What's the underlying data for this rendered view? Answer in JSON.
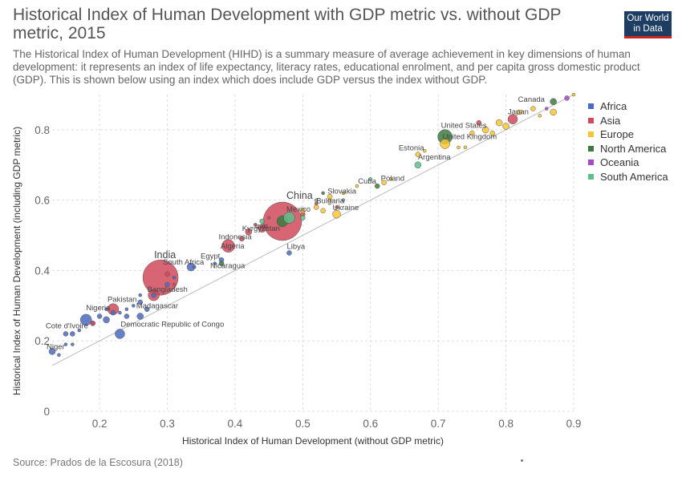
{
  "header": {
    "title": "Historical Index of Human Development with GDP metric vs. without GDP metric, 2015",
    "subtitle": "The Historical Index of Human Development (HIHD) is a summary measure of average achievement in key dimensions of human development: it represents an index of life expectancy, literacy rates, educational enrolment, and per capita gross domestic product (GDP). This is shown below using an index which does include GDP versus the index without GDP.",
    "logo_line1": "Our World",
    "logo_line2": "in Data"
  },
  "footer": {
    "source": "Source: Prados de la Escosura (2018)"
  },
  "colors": {
    "Africa": "#4c6bbf",
    "Asia": "#d04a5b",
    "Europe": "#f8c632",
    "North America": "#3e7a3e",
    "Oceania": "#a948c8",
    "South America": "#5dbf8a"
  },
  "chart_data": {
    "type": "scatter",
    "title": "Historical Index of Human Development with GDP metric vs. without GDP metric, 2015",
    "xlabel": "Historical Index of Human Development (without GDP metric)",
    "ylabel": "Historical Index of Human Development (including GDP metric)",
    "xlim": [
      0.13,
      0.9
    ],
    "ylim": [
      0,
      0.9
    ],
    "xticks": [
      "0.2",
      "0.3",
      "0.4",
      "0.5",
      "0.6",
      "0.7",
      "0.8",
      "0.9"
    ],
    "yticks": [
      "0",
      "0.2",
      "0.4",
      "0.6",
      "0.8"
    ],
    "grid": "dashed",
    "legend": [
      "Africa",
      "Asia",
      "Europe",
      "North America",
      "Oceania",
      "South America"
    ],
    "legend_position": "right",
    "series": [
      {
        "name": "Africa",
        "points": [
          {
            "x": 0.13,
            "y": 0.17,
            "r": 4,
            "label": "Niger"
          },
          {
            "x": 0.15,
            "y": 0.22,
            "r": 3,
            "label": "Cote d'Ivoire"
          },
          {
            "x": 0.18,
            "y": 0.26,
            "r": 7,
            "label": "Nigeria"
          },
          {
            "x": 0.23,
            "y": 0.22,
            "r": 6,
            "label": "Democratic Republic of Congo"
          },
          {
            "x": 0.26,
            "y": 0.27,
            "r": 4,
            "label": "Madagascar"
          },
          {
            "x": 0.335,
            "y": 0.41,
            "r": 5,
            "label": "South Africa"
          },
          {
            "x": 0.38,
            "y": 0.43,
            "r": 3,
            "label": "Egypt"
          },
          {
            "x": 0.48,
            "y": 0.45,
            "r": 3,
            "label": "Libya"
          },
          {
            "x": 0.14,
            "y": 0.16,
            "r": 2
          },
          {
            "x": 0.15,
            "y": 0.19,
            "r": 2
          },
          {
            "x": 0.16,
            "y": 0.19,
            "r": 2
          },
          {
            "x": 0.16,
            "y": 0.22,
            "r": 3
          },
          {
            "x": 0.17,
            "y": 0.23,
            "r": 2
          },
          {
            "x": 0.19,
            "y": 0.25,
            "r": 3
          },
          {
            "x": 0.2,
            "y": 0.27,
            "r": 3
          },
          {
            "x": 0.21,
            "y": 0.26,
            "r": 4
          },
          {
            "x": 0.21,
            "y": 0.29,
            "r": 2
          },
          {
            "x": 0.22,
            "y": 0.28,
            "r": 3
          },
          {
            "x": 0.23,
            "y": 0.28,
            "r": 2
          },
          {
            "x": 0.24,
            "y": 0.27,
            "r": 3
          },
          {
            "x": 0.24,
            "y": 0.29,
            "r": 2
          },
          {
            "x": 0.25,
            "y": 0.3,
            "r": 2
          },
          {
            "x": 0.26,
            "y": 0.31,
            "r": 3
          },
          {
            "x": 0.26,
            "y": 0.33,
            "r": 2
          },
          {
            "x": 0.27,
            "y": 0.29,
            "r": 3
          },
          {
            "x": 0.28,
            "y": 0.33,
            "r": 3
          },
          {
            "x": 0.3,
            "y": 0.36,
            "r": 3
          },
          {
            "x": 0.31,
            "y": 0.38,
            "r": 2
          },
          {
            "x": 0.34,
            "y": 0.41,
            "r": 2
          },
          {
            "x": 0.37,
            "y": 0.42,
            "r": 2
          }
        ]
      },
      {
        "name": "Asia",
        "points": [
          {
            "x": 0.29,
            "y": 0.38,
            "r": 22,
            "label": "India"
          },
          {
            "x": 0.28,
            "y": 0.33,
            "r": 7,
            "label": "Bangladesh"
          },
          {
            "x": 0.22,
            "y": 0.29,
            "r": 7,
            "label": "Pakistan"
          },
          {
            "x": 0.39,
            "y": 0.47,
            "r": 8,
            "label": "Indonesia"
          },
          {
            "x": 0.47,
            "y": 0.54,
            "r": 24,
            "label": "China"
          },
          {
            "x": 0.44,
            "y": 0.52,
            "r": 5,
            "label": "Iran"
          },
          {
            "x": 0.42,
            "y": 0.51,
            "r": 4,
            "label": "Kyrgyzstan"
          },
          {
            "x": 0.81,
            "y": 0.83,
            "r": 6,
            "label": "Japan"
          },
          {
            "x": 0.19,
            "y": 0.25,
            "r": 3
          },
          {
            "x": 0.3,
            "y": 0.39,
            "r": 3
          },
          {
            "x": 0.31,
            "y": 0.36,
            "r": 2
          },
          {
            "x": 0.41,
            "y": 0.49,
            "r": 3
          },
          {
            "x": 0.43,
            "y": 0.53,
            "r": 2
          },
          {
            "x": 0.45,
            "y": 0.55,
            "r": 2
          },
          {
            "x": 0.5,
            "y": 0.56,
            "r": 3
          },
          {
            "x": 0.52,
            "y": 0.59,
            "r": 2
          },
          {
            "x": 0.55,
            "y": 0.58,
            "r": 2
          },
          {
            "x": 0.76,
            "y": 0.82,
            "r": 3
          }
        ]
      },
      {
        "name": "Europe",
        "points": [
          {
            "x": 0.71,
            "y": 0.76,
            "r": 6,
            "label": "United Kingdom"
          },
          {
            "x": 0.55,
            "y": 0.56,
            "r": 5,
            "label": "Ukraine"
          },
          {
            "x": 0.52,
            "y": 0.58,
            "r": 3,
            "label": "Bulgaria"
          },
          {
            "x": 0.54,
            "y": 0.61,
            "r": 3,
            "label": "Slovakia"
          },
          {
            "x": 0.62,
            "y": 0.65,
            "r": 3,
            "label": "Poland"
          },
          {
            "x": 0.67,
            "y": 0.73,
            "r": 3,
            "label": "Estonia"
          },
          {
            "x": 0.5,
            "y": 0.57,
            "r": 3
          },
          {
            "x": 0.53,
            "y": 0.57,
            "r": 3
          },
          {
            "x": 0.54,
            "y": 0.6,
            "r": 2
          },
          {
            "x": 0.56,
            "y": 0.62,
            "r": 2
          },
          {
            "x": 0.58,
            "y": 0.64,
            "r": 2
          },
          {
            "x": 0.63,
            "y": 0.66,
            "r": 2
          },
          {
            "x": 0.68,
            "y": 0.74,
            "r": 2
          },
          {
            "x": 0.73,
            "y": 0.75,
            "r": 2
          },
          {
            "x": 0.74,
            "y": 0.75,
            "r": 2
          },
          {
            "x": 0.75,
            "y": 0.79,
            "r": 3
          },
          {
            "x": 0.77,
            "y": 0.8,
            "r": 4
          },
          {
            "x": 0.78,
            "y": 0.79,
            "r": 3
          },
          {
            "x": 0.79,
            "y": 0.82,
            "r": 4
          },
          {
            "x": 0.8,
            "y": 0.81,
            "r": 4
          },
          {
            "x": 0.82,
            "y": 0.85,
            "r": 3
          },
          {
            "x": 0.84,
            "y": 0.86,
            "r": 3
          },
          {
            "x": 0.85,
            "y": 0.84,
            "r": 2
          },
          {
            "x": 0.87,
            "y": 0.85,
            "r": 4
          },
          {
            "x": 0.9,
            "y": 0.9,
            "r": 2
          }
        ]
      },
      {
        "name": "North America",
        "points": [
          {
            "x": 0.71,
            "y": 0.78,
            "r": 9,
            "label": "United States"
          },
          {
            "x": 0.87,
            "y": 0.88,
            "r": 4,
            "label": "Canada"
          },
          {
            "x": 0.47,
            "y": 0.54,
            "r": 7,
            "label": "Mexico"
          },
          {
            "x": 0.61,
            "y": 0.64,
            "r": 3,
            "label": "Cuba"
          },
          {
            "x": 0.38,
            "y": 0.42,
            "r": 3,
            "label": "Nicaragua"
          },
          {
            "x": 0.53,
            "y": 0.62,
            "r": 2
          }
        ]
      },
      {
        "name": "Oceania",
        "points": [
          {
            "x": 0.89,
            "y": 0.89,
            "r": 3
          },
          {
            "x": 0.86,
            "y": 0.86,
            "r": 2
          }
        ]
      },
      {
        "name": "South America",
        "points": [
          {
            "x": 0.67,
            "y": 0.7,
            "r": 4,
            "label": "Argentina"
          },
          {
            "x": 0.48,
            "y": 0.55,
            "r": 7
          },
          {
            "x": 0.44,
            "y": 0.54,
            "r": 3
          },
          {
            "x": 0.5,
            "y": 0.55,
            "r": 3
          },
          {
            "x": 0.6,
            "y": 0.66,
            "r": 2
          },
          {
            "x": 0.56,
            "y": 0.6,
            "r": 2
          },
          {
            "x": 0.52,
            "y": 0.6,
            "r": 2
          }
        ]
      }
    ],
    "annotations": [
      {
        "text": "Niger",
        "x": 0.13,
        "y": 0.17
      },
      {
        "text": "Cote d'Ivoire",
        "x": 0.15,
        "y": 0.22
      },
      {
        "text": "Nigeria",
        "x": 0.18,
        "y": 0.26
      },
      {
        "text": "Democratic Republic of Congo",
        "x": 0.23,
        "y": 0.22
      },
      {
        "text": "Pakistan",
        "x": 0.22,
        "y": 0.29
      },
      {
        "text": "Madagascar",
        "x": 0.26,
        "y": 0.27
      },
      {
        "text": "Bangladesh",
        "x": 0.28,
        "y": 0.33
      },
      {
        "text": "India",
        "x": 0.29,
        "y": 0.38
      },
      {
        "text": "South Africa",
        "x": 0.335,
        "y": 0.41
      },
      {
        "text": "Egypt",
        "x": 0.38,
        "y": 0.43
      },
      {
        "text": "Nicaragua",
        "x": 0.38,
        "y": 0.42
      },
      {
        "text": "Indonesia",
        "x": 0.39,
        "y": 0.47
      },
      {
        "text": "Algeria",
        "x": 0.4,
        "y": 0.46
      },
      {
        "text": "Kyrgyzstan",
        "x": 0.42,
        "y": 0.51
      },
      {
        "text": "Iran",
        "x": 0.44,
        "y": 0.52
      },
      {
        "text": "Libya",
        "x": 0.48,
        "y": 0.45
      },
      {
        "text": "China",
        "x": 0.47,
        "y": 0.54
      },
      {
        "text": "Mexico",
        "x": 0.47,
        "y": 0.54
      },
      {
        "text": "Bulgaria",
        "x": 0.52,
        "y": 0.58
      },
      {
        "text": "Slovakia",
        "x": 0.54,
        "y": 0.61
      },
      {
        "text": "Ukraine",
        "x": 0.55,
        "y": 0.56
      },
      {
        "text": "Cuba",
        "x": 0.61,
        "y": 0.64
      },
      {
        "text": "Poland",
        "x": 0.62,
        "y": 0.65
      },
      {
        "text": "Estonia",
        "x": 0.67,
        "y": 0.73
      },
      {
        "text": "Argentina",
        "x": 0.67,
        "y": 0.7
      },
      {
        "text": "United States",
        "x": 0.71,
        "y": 0.78
      },
      {
        "text": "United Kingdom",
        "x": 0.71,
        "y": 0.76
      },
      {
        "text": "Japan",
        "x": 0.81,
        "y": 0.83
      },
      {
        "text": "Canada",
        "x": 0.87,
        "y": 0.88
      }
    ]
  }
}
